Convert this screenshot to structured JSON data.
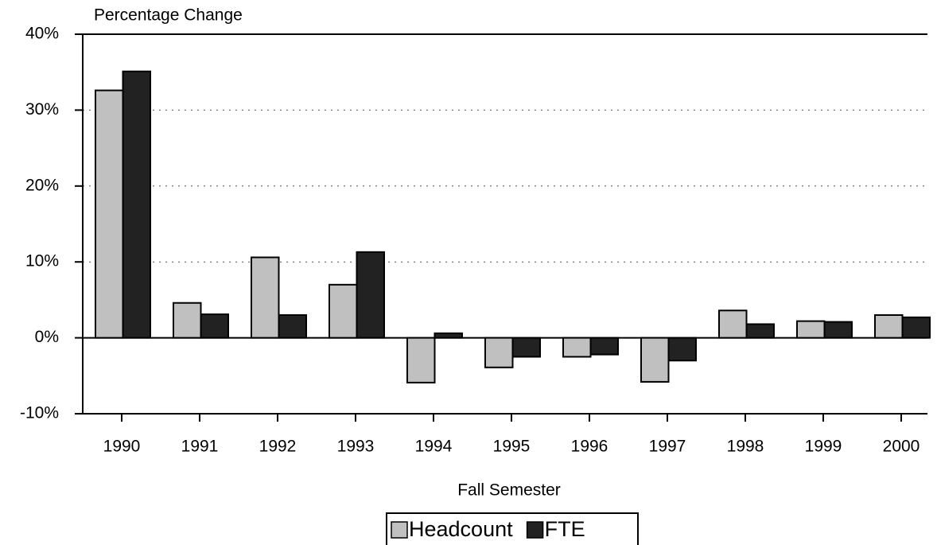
{
  "chart_data": {
    "type": "bar",
    "title": "Percentage Change",
    "x_label": "Fall Semester",
    "categories": [
      "1990",
      "1991",
      "1992",
      "1993",
      "1994",
      "1995",
      "1996",
      "1997",
      "1998",
      "1999",
      "2000"
    ],
    "series": [
      {
        "name": "Headcount",
        "color": "#c0c0c0",
        "values": [
          32.6,
          4.6,
          10.6,
          7.0,
          -5.9,
          -3.9,
          -2.5,
          -5.8,
          3.6,
          2.2,
          3.0
        ]
      },
      {
        "name": "FTE",
        "color": "#222222",
        "values": [
          35.1,
          3.1,
          3.0,
          11.3,
          0.6,
          -2.5,
          -2.2,
          -3.0,
          1.8,
          2.1,
          2.7
        ]
      }
    ],
    "ylim": [
      -10,
      40
    ],
    "yticks": [
      {
        "value": -10,
        "label": "-10%"
      },
      {
        "value": 0,
        "label": "0%"
      },
      {
        "value": 10,
        "label": "10%"
      },
      {
        "value": 20,
        "label": "20%"
      },
      {
        "value": 30,
        "label": "30%"
      },
      {
        "value": 40,
        "label": "40%"
      }
    ],
    "grid": true
  }
}
